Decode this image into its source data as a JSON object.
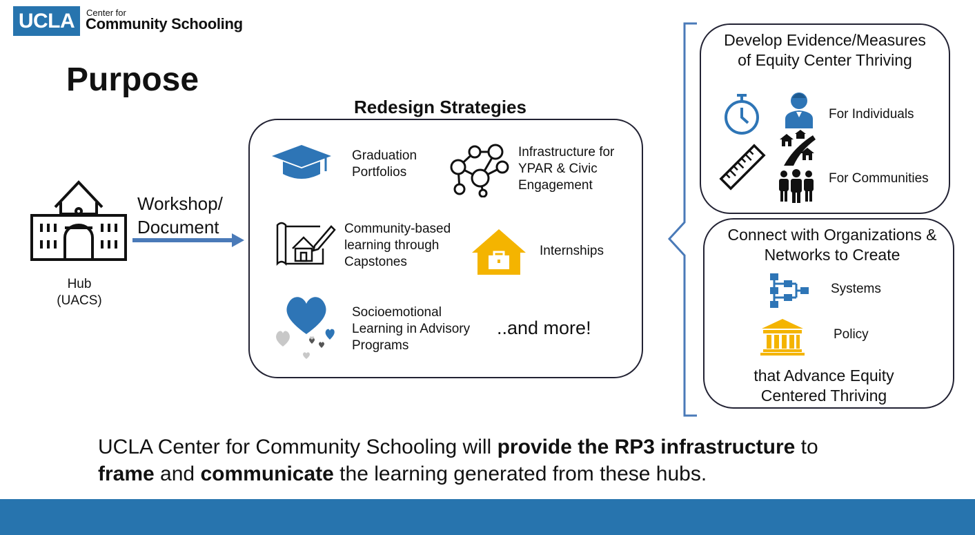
{
  "logo": {
    "ucla": "UCLA",
    "center_for": "Center for",
    "community_schooling": "Community Schooling"
  },
  "title": "Purpose",
  "hub": {
    "line1": "Hub",
    "line2": "(UACS)"
  },
  "workshop": {
    "line1": "Workshop/",
    "line2": "Document"
  },
  "redesign": {
    "title": "Redesign Strategies",
    "graduation": [
      "Graduation",
      "Portfolios"
    ],
    "infrastructure": [
      "Infrastructure for",
      "YPAR & Civic",
      "Engagement"
    ],
    "community": [
      "Community-based",
      "learning through",
      "Capstones"
    ],
    "internships": "Internships",
    "socioemotional": [
      "Socioemotional",
      "Learning in Advisory",
      "Programs"
    ],
    "more": "..and more!"
  },
  "evidence": {
    "heading": [
      "Develop Evidence/Measures",
      "of Equity Center Thriving"
    ],
    "individuals": "For Individuals",
    "communities": "For Communities"
  },
  "connect": {
    "heading": [
      "Connect with Organizations &",
      "Networks to Create"
    ],
    "systems": "Systems",
    "policy": "Policy",
    "footer": [
      "that Advance Equity",
      "Centered Thriving"
    ]
  },
  "statement": {
    "part1": "UCLA Center for Community Schooling will ",
    "bold1": "provide the RP3 infrastructure",
    "part2": " to",
    "bold2": "frame",
    "part3": " and ",
    "bold3": "communicate",
    "part4": " the learning generated from these hubs."
  },
  "colors": {
    "ucla_blue": "#2774ae",
    "icon_blue": "#2e75b6",
    "gold": "#f4b400",
    "footer_bar": "#2774ae"
  }
}
